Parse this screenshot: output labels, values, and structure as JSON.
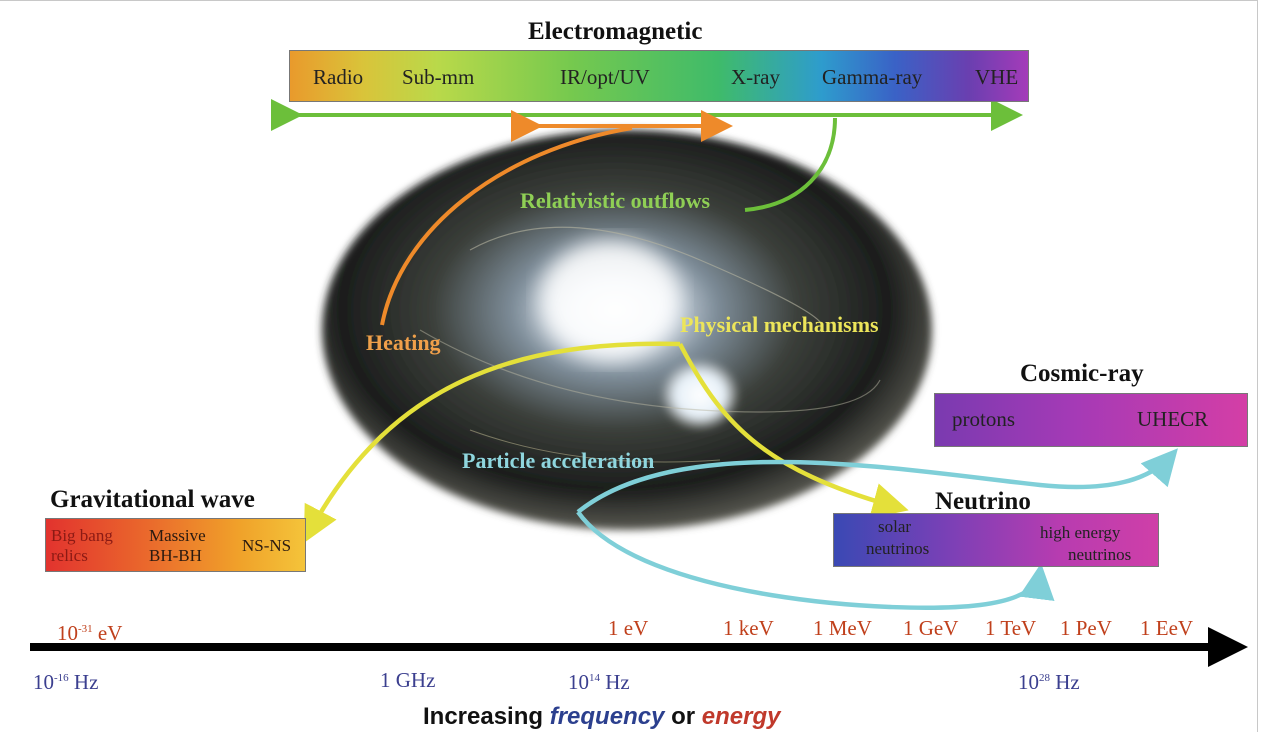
{
  "electromagnetic": {
    "title": "Electromagnetic",
    "bands": [
      "Radio",
      "Sub-mm",
      "IR/opt/UV",
      "X-ray",
      "Gamma-ray",
      "VHE"
    ]
  },
  "cosmic_ray": {
    "title": "Cosmic-ray",
    "labels": [
      "protons",
      "UHECR"
    ]
  },
  "neutrino": {
    "title": "Neutrino",
    "label_low_1": "solar",
    "label_low_2": "neutrinos",
    "label_high_1": "high energy",
    "label_high_2": "neutrinos"
  },
  "gravitational_wave": {
    "title": "Gravitational wave",
    "label_a_1": "Big bang",
    "label_a_2": "relics",
    "label_b_1": "Massive",
    "label_b_2": "BH-BH",
    "label_c": "NS-NS"
  },
  "mechanisms": {
    "relativistic": "Relativistic outflows",
    "heating": "Heating",
    "physical": "Physical mechanisms",
    "particle": "Particle acceleration"
  },
  "energy_ticks": [
    {
      "base": "10",
      "exp": "-31",
      "unit": " eV"
    },
    {
      "base": "1 eV",
      "exp": "",
      "unit": ""
    },
    {
      "base": "1 keV",
      "exp": "",
      "unit": ""
    },
    {
      "base": "1 MeV",
      "exp": "",
      "unit": ""
    },
    {
      "base": "1 GeV",
      "exp": "",
      "unit": ""
    },
    {
      "base": "1 TeV",
      "exp": "",
      "unit": ""
    },
    {
      "base": "1 PeV",
      "exp": "",
      "unit": ""
    },
    {
      "base": "1 EeV",
      "exp": "",
      "unit": ""
    }
  ],
  "frequency_ticks": [
    {
      "base": "10",
      "exp": "-16",
      "unit": " Hz"
    },
    {
      "base": "1 GHz",
      "exp": "",
      "unit": ""
    },
    {
      "base": "10",
      "exp": "14",
      "unit": " Hz"
    },
    {
      "base": "10",
      "exp": "28",
      "unit": " Hz"
    }
  ],
  "axis_title": {
    "prefix": "Increasing",
    "frequency": "frequency",
    "or": "or",
    "energy": "energy"
  },
  "colors": {
    "energy_text": "#c0401c",
    "frequency_text": "#3b3f8f",
    "green_arrow": "#6cbf3a",
    "orange_arrow": "#ee8a2a",
    "yellow_arrow": "#e8e23a",
    "cyan_arrow": "#7fcfd8"
  }
}
